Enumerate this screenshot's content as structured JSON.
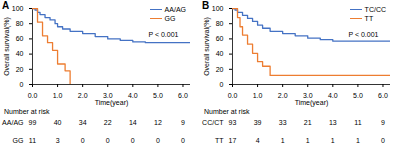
{
  "chart_data": [
    {
      "type": "line",
      "label": "A",
      "xlabel": "Time(year)",
      "ylabel": "Overall survival(%)",
      "xlim": [
        0,
        6.3
      ],
      "xticks": [
        0,
        1,
        2,
        3,
        4,
        5,
        6
      ],
      "ylim": [
        0,
        100
      ],
      "yticks": [
        0,
        20,
        40,
        60,
        80,
        100
      ],
      "legend": "top-right",
      "annotations": [
        "P < 0.001"
      ],
      "series": [
        {
          "name": "AA/AG",
          "color": "#4472c4",
          "line_style": "step",
          "x": [
            0,
            0.1,
            0.2,
            0.3,
            0.5,
            0.7,
            0.9,
            1.0,
            1.2,
            1.5,
            2.0,
            2.5,
            3.0,
            3.5,
            4.0,
            4.5,
            6.3
          ],
          "values": [
            100,
            98,
            95,
            92,
            88,
            85,
            80,
            76,
            73,
            70,
            67,
            63,
            60,
            58,
            56,
            55,
            55
          ]
        },
        {
          "name": "GG",
          "color": "#ed7d31",
          "line_style": "step",
          "x": [
            0,
            0.2,
            0.4,
            0.6,
            0.8,
            1.0,
            1.3,
            1.5
          ],
          "values": [
            100,
            82,
            64,
            55,
            45,
            27,
            18,
            0
          ]
        }
      ],
      "risk_table": {
        "title": "Number at risk",
        "times": [
          0,
          1,
          2,
          3,
          4,
          5,
          6
        ],
        "rows": [
          {
            "name": "AA/AG",
            "values": [
              99,
              40,
              34,
              22,
              14,
              12,
              9
            ]
          },
          {
            "name": "GG",
            "values": [
              11,
              3,
              0,
              0,
              0,
              0,
              0
            ]
          }
        ]
      }
    },
    {
      "type": "line",
      "label": "B",
      "xlabel": "Time(year)",
      "ylabel": "Overall survival(%)",
      "xlim": [
        0,
        6.3
      ],
      "xticks": [
        0,
        1,
        2,
        3,
        4,
        5,
        6
      ],
      "ylim": [
        0,
        100
      ],
      "yticks": [
        0,
        20,
        40,
        60,
        80,
        100
      ],
      "legend": "top-right",
      "annotations": [
        "P < 0.001"
      ],
      "series": [
        {
          "name": "TC/CC",
          "color": "#4472c4",
          "line_style": "step",
          "x": [
            0,
            0.1,
            0.2,
            0.4,
            0.6,
            0.8,
            1.0,
            1.2,
            1.5,
            2.0,
            2.5,
            3.0,
            3.5,
            4.0,
            6.3
          ],
          "values": [
            100,
            98,
            95,
            91,
            87,
            83,
            78,
            74,
            70,
            67,
            64,
            61,
            59,
            57,
            57
          ]
        },
        {
          "name": "TT",
          "color": "#ed7d31",
          "line_style": "step",
          "x": [
            0,
            0.2,
            0.3,
            0.4,
            0.6,
            0.8,
            1.0,
            1.2,
            1.5,
            6.3
          ],
          "values": [
            100,
            88,
            76,
            65,
            53,
            41,
            30,
            24,
            12,
            12
          ]
        }
      ],
      "risk_table": {
        "title": "Number at risk",
        "times": [
          0,
          1,
          2,
          3,
          4,
          5,
          6
        ],
        "rows": [
          {
            "name": "CC/CT",
            "values": [
              93,
              39,
              33,
              21,
              13,
              11,
              9
            ]
          },
          {
            "name": "TT",
            "values": [
              17,
              4,
              1,
              1,
              1,
              1,
              0
            ]
          }
        ]
      }
    }
  ]
}
